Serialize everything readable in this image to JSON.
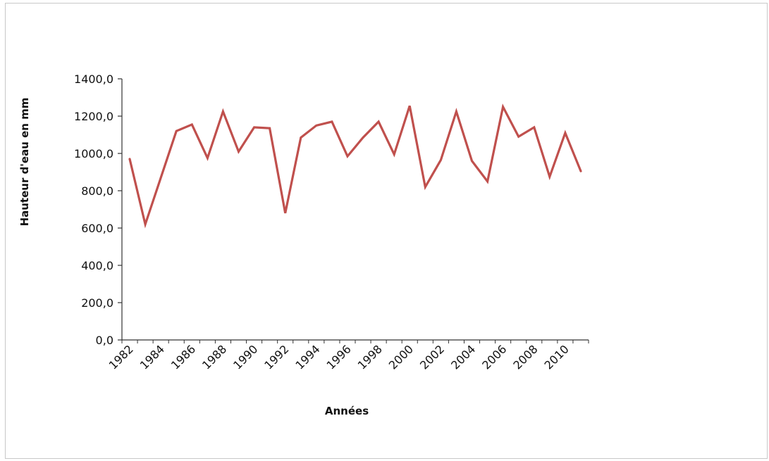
{
  "chart_data": {
    "type": "line",
    "title": "",
    "xlabel": "Années",
    "ylabel": "Hauteur d'eau en mm",
    "x": [
      1982,
      1983,
      1984,
      1985,
      1986,
      1987,
      1988,
      1989,
      1990,
      1991,
      1992,
      1993,
      1994,
      1995,
      1996,
      1997,
      1998,
      1999,
      2000,
      2001,
      2002,
      2003,
      2004,
      2005,
      2006,
      2007,
      2008,
      2009,
      2010,
      2011
    ],
    "series": [
      {
        "values": [
          970,
          620,
          870,
          1120,
          1155,
          975,
          1225,
          1010,
          1140,
          1135,
          680,
          1085,
          1150,
          1170,
          985,
          1085,
          1170,
          995,
          1255,
          820,
          965,
          1225,
          960,
          850,
          1250,
          1090,
          1140,
          875,
          1110,
          905
        ],
        "color": "#c0504d"
      }
    ],
    "ylim": [
      0,
      1400
    ],
    "y_ticks": [
      0,
      200,
      400,
      600,
      800,
      1000,
      1200,
      1400
    ],
    "y_tick_labels": [
      "0,0",
      "200,0",
      "400,0",
      "600,0",
      "800,0",
      "1000,0",
      "1200,0",
      "1400,0"
    ],
    "x_tick_labels": [
      "1982",
      "1984",
      "1986",
      "1988",
      "1990",
      "1992",
      "1994",
      "1996",
      "1998",
      "2000",
      "2002",
      "2004",
      "2006",
      "2008",
      "2010"
    ],
    "grid": false,
    "legend": "none"
  }
}
